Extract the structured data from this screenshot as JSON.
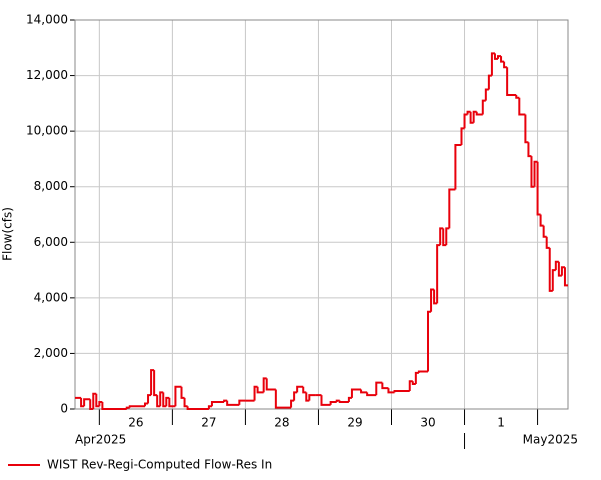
{
  "chart_data": {
    "type": "step",
    "y_label": "Flow(cfs)",
    "x_month_labels": [
      {
        "value": 0,
        "label": "Apr2025"
      },
      {
        "value": 128,
        "label": "May2025"
      }
    ],
    "xlim": [
      0,
      162
    ],
    "x_day_boundaries": [
      8,
      32,
      56,
      80,
      104,
      128,
      152
    ],
    "xticks": [
      {
        "value": 20,
        "label": "26"
      },
      {
        "value": 44,
        "label": "27"
      },
      {
        "value": 68,
        "label": "28"
      },
      {
        "value": 92,
        "label": "29"
      },
      {
        "value": 116,
        "label": "30"
      },
      {
        "value": 140,
        "label": "1"
      }
    ],
    "ylim": [
      0,
      14000
    ],
    "yticks": [
      0,
      {
        "value": 2000,
        "label": "2,000"
      },
      {
        "value": 4000,
        "label": "4,000"
      },
      {
        "value": 6000,
        "label": "6,000"
      },
      {
        "value": 8000,
        "label": "8,000"
      },
      {
        "value": 10000,
        "label": "10,000"
      },
      {
        "value": 12000,
        "label": "12,000"
      },
      {
        "value": 14000,
        "label": "14,000"
      }
    ],
    "grid": true,
    "series": [
      {
        "name": "WIST Rev-Regi-Computed Flow-Res In",
        "color": "#e8000b",
        "x": [
          0,
          2,
          3,
          5,
          6,
          7,
          8,
          9,
          17,
          18,
          23,
          24,
          25,
          26,
          27,
          28,
          29,
          30,
          31,
          33,
          35,
          36,
          37,
          44,
          45,
          49,
          50,
          54,
          56,
          59,
          60,
          62,
          63,
          66,
          71,
          72,
          73,
          75,
          76,
          77,
          79,
          81,
          84,
          86,
          87,
          90,
          91,
          94,
          96,
          99,
          101,
          103,
          105,
          110,
          111,
          112,
          113,
          116,
          117,
          118,
          119,
          120,
          121,
          122,
          123,
          125,
          127,
          128,
          129,
          130,
          131,
          132,
          134,
          135,
          136,
          137,
          138,
          139,
          140,
          141,
          142,
          145,
          146,
          148,
          149,
          150,
          151,
          152,
          153,
          154,
          155,
          156,
          157,
          158,
          159,
          160,
          161
        ],
        "values": [
          400,
          100,
          350,
          0,
          550,
          100,
          250,
          0,
          50,
          100,
          200,
          500,
          1400,
          500,
          100,
          600,
          100,
          400,
          100,
          800,
          400,
          100,
          0,
          100,
          250,
          300,
          150,
          300,
          300,
          800,
          600,
          1100,
          700,
          50,
          300,
          600,
          800,
          600,
          300,
          500,
          500,
          150,
          250,
          300,
          250,
          400,
          700,
          600,
          500,
          950,
          750,
          600,
          650,
          1000,
          900,
          1300,
          1350,
          3500,
          4300,
          3800,
          5900,
          6500,
          5900,
          6500,
          7900,
          9500,
          10100,
          10600,
          10700,
          10300,
          10700,
          10600,
          11100,
          11500,
          12000,
          12800,
          12600,
          12700,
          12500,
          12300,
          11300,
          11200,
          10600,
          9600,
          9100,
          8000,
          8900,
          7000,
          6600,
          6200,
          5800,
          4250,
          5000,
          5300,
          4800,
          5100,
          4450
        ]
      }
    ]
  }
}
